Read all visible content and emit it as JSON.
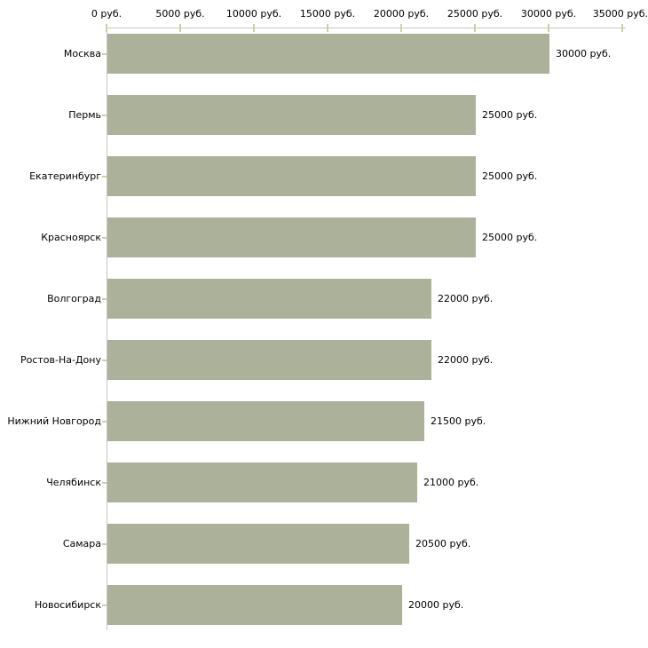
{
  "chart_data": {
    "type": "bar",
    "orientation": "horizontal",
    "title": "",
    "categories": [
      "Москва",
      "Пермь",
      "Екатеринбург",
      "Красноярск",
      "Волгоград",
      "Ростов-На-Дону",
      "Нижний Новгород",
      "Челябинск",
      "Самара",
      "Новосибирск"
    ],
    "values": [
      30000,
      25000,
      25000,
      25000,
      22000,
      22000,
      21500,
      21000,
      20500,
      20000
    ],
    "value_labels": [
      "30000 руб.",
      "25000 руб.",
      "25000 руб.",
      "25000 руб.",
      "22000 руб.",
      "22000 руб.",
      "21500 руб.",
      "21000 руб.",
      "20500 руб.",
      "20000 руб."
    ],
    "x_ticks": [
      0,
      5000,
      10000,
      15000,
      20000,
      25000,
      30000,
      35000
    ],
    "x_tick_labels": [
      "0 руб.",
      "5000 руб.",
      "10000 руб.",
      "15000 руб.",
      "20000 руб.",
      "25000 руб.",
      "30000 руб.",
      "35000 руб."
    ],
    "xlabel": "",
    "ylabel": "",
    "xlim": [
      0,
      35000
    ],
    "unit": "руб.",
    "grid": false,
    "legend": null,
    "colors": {
      "bar": "#abb299",
      "axis": "#c6c6c6",
      "tick": "#cfcfa4",
      "text": "#000000",
      "background": "#ffffff"
    }
  }
}
